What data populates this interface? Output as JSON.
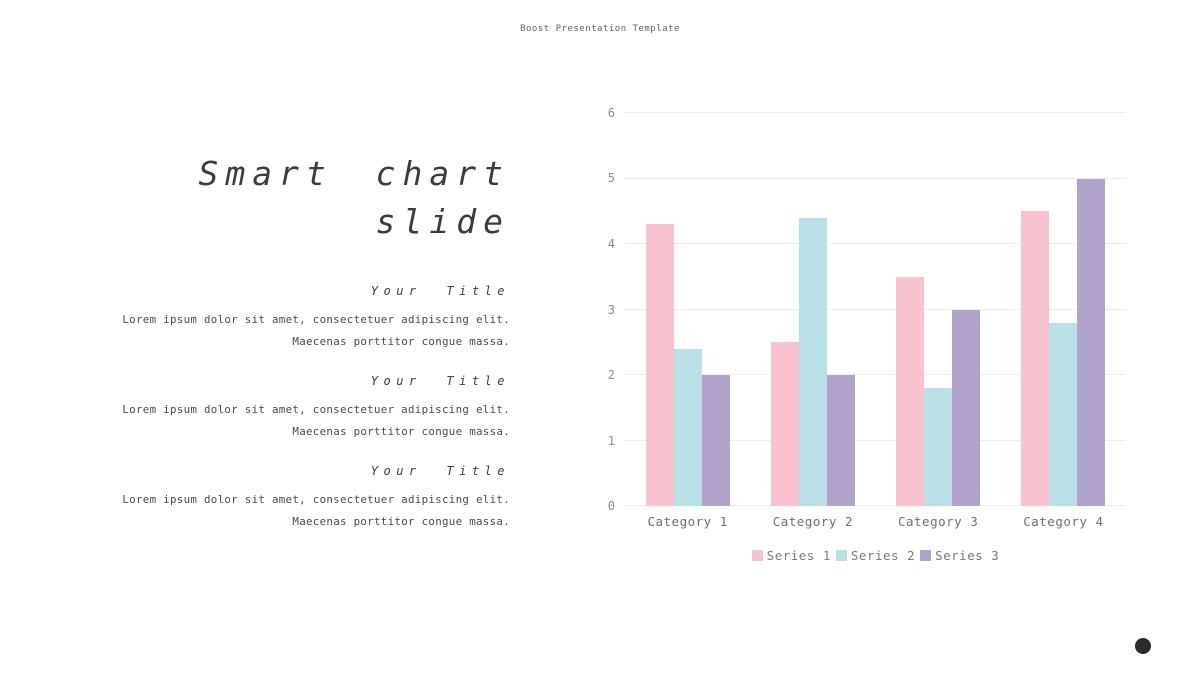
{
  "header": {
    "title": "Boost Presentation Template"
  },
  "left_panel": {
    "title_line1": "Smart chart",
    "title_line2": "slide",
    "sections": [
      {
        "heading": "Your Title",
        "body_line1": "Lorem ipsum dolor sit amet, consectetuer adipiscing elit.",
        "body_line2": "Maecenas porttitor congue massa."
      },
      {
        "heading": "Your Title",
        "body_line1": "Lorem ipsum dolor sit amet, consectetuer adipiscing elit.",
        "body_line2": "Maecenas porttitor congue massa."
      },
      {
        "heading": "Your Title",
        "body_line1": "Lorem ipsum dolor sit amet, consectetuer adipiscing elit.",
        "body_line2": "Maecenas porttitor congue massa."
      }
    ]
  },
  "chart_data": {
    "type": "bar",
    "title": "",
    "categories": [
      "Category 1",
      "Category 2",
      "Category 3",
      "Category 4"
    ],
    "series": [
      {
        "name": "Series 1",
        "color": "#f8c3cf",
        "values": [
          4.3,
          2.5,
          3.5,
          4.5
        ]
      },
      {
        "name": "Series 2",
        "color": "#b9e0e6",
        "values": [
          2.4,
          4.4,
          1.8,
          2.8
        ]
      },
      {
        "name": "Series 3",
        "color": "#b0a2cb",
        "values": [
          2.0,
          2.0,
          3.0,
          5.0
        ]
      }
    ],
    "ylim": [
      0,
      6
    ],
    "ytick_interval": 1,
    "ytick_labels": [
      "0",
      "1",
      "2",
      "3",
      "4",
      "5",
      "6"
    ],
    "grid": true,
    "gridline_color": "#ededed",
    "legend_position": "bottom"
  },
  "decorations": {
    "dot_color": "#2b2b2b"
  }
}
